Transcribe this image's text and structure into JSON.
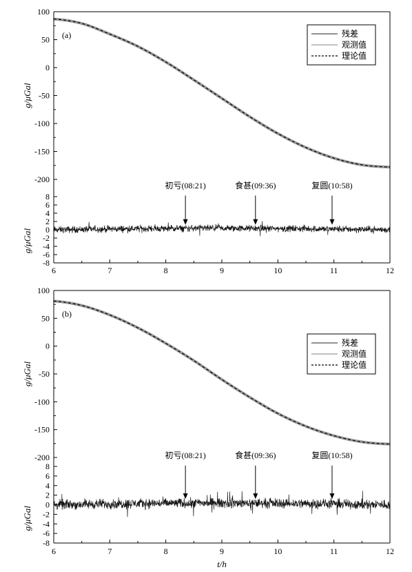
{
  "chart_data": [
    {
      "type": "line",
      "panel_label": "(a)",
      "xlabel": "t/h",
      "xlim": [
        6,
        12
      ],
      "x_ticks": [
        "6",
        "7",
        "8",
        "9",
        "10",
        "11",
        "12"
      ],
      "top": {
        "ylabel": "g/μGal",
        "ylim": [
          -200,
          100
        ],
        "y_ticks": [
          "100",
          "50",
          "0",
          "-50",
          "-100",
          "-150",
          "-200"
        ],
        "legend_position": "top-right",
        "series": [
          {
            "name": "残差",
            "style": "solid-dark",
            "color": "#222222"
          },
          {
            "name": "观测值",
            "style": "solid-gray",
            "color": "#9a9a9a",
            "x": [
              6,
              6.5,
              7,
              7.5,
              8,
              8.5,
              9,
              9.5,
              10,
              10.5,
              11,
              11.5,
              12
            ],
            "y": [
              87,
              79,
              60,
              38,
              10,
              -22,
              -55,
              -88,
              -118,
              -143,
              -162,
              -174,
              -178
            ]
          },
          {
            "name": "理论值",
            "style": "dashed",
            "color": "#000000",
            "x": [
              6,
              6.5,
              7,
              7.5,
              8,
              8.5,
              9,
              9.5,
              10,
              10.5,
              11,
              11.5,
              12
            ],
            "y": [
              87,
              79,
              60,
              38,
              10,
              -22,
              -55,
              -88,
              -118,
              -143,
              -162,
              -174,
              -178
            ]
          }
        ]
      },
      "bottom": {
        "ylabel": "g/μGal",
        "ylim": [
          -8,
          8
        ],
        "y_ticks": [
          "8",
          "6",
          "4",
          "2",
          "0",
          "-2",
          "-4",
          "-6",
          "-8"
        ],
        "residual_amplitude": 1.2,
        "annotations": [
          {
            "text": "初亏(08:21)",
            "x": 8.35
          },
          {
            "text": "食甚(09:36)",
            "x": 9.6
          },
          {
            "text": "复圆(10:58)",
            "x": 10.967
          }
        ]
      }
    },
    {
      "type": "line",
      "panel_label": "(b)",
      "xlabel": "t/h",
      "xlim": [
        6,
        12
      ],
      "x_ticks": [
        "6",
        "7",
        "8",
        "9",
        "10",
        "11",
        "12"
      ],
      "top": {
        "ylabel": "g/μGal",
        "ylim": [
          -200,
          100
        ],
        "y_ticks": [
          "100",
          "50",
          "0",
          "-50",
          "-100",
          "-150",
          "-200"
        ],
        "legend_position": "right",
        "series": [
          {
            "name": "残差",
            "style": "solid-dark",
            "color": "#222222"
          },
          {
            "name": "观测值",
            "style": "solid-gray",
            "color": "#9a9a9a",
            "x": [
              6,
              6.5,
              7,
              7.5,
              8,
              8.5,
              9,
              9.5,
              10,
              10.5,
              11,
              11.5,
              12
            ],
            "y": [
              81,
              73,
              56,
              33,
              5,
              -26,
              -60,
              -92,
              -121,
              -144,
              -161,
              -172,
              -176
            ]
          },
          {
            "name": "理论值",
            "style": "dashed",
            "color": "#000000",
            "x": [
              6,
              6.5,
              7,
              7.5,
              8,
              8.5,
              9,
              9.5,
              10,
              10.5,
              11,
              11.5,
              12
            ],
            "y": [
              81,
              73,
              56,
              33,
              5,
              -26,
              -60,
              -92,
              -121,
              -144,
              -161,
              -172,
              -176
            ]
          }
        ]
      },
      "bottom": {
        "ylabel": "g/μGal",
        "ylim": [
          -8,
          8
        ],
        "y_ticks": [
          "8",
          "6",
          "4",
          "2",
          "0",
          "-2",
          "-4",
          "-6",
          "-8"
        ],
        "residual_amplitude": 1.5,
        "annotations": [
          {
            "text": "初亏(08:21)",
            "x": 8.35
          },
          {
            "text": "食甚(09:36)",
            "x": 9.6
          },
          {
            "text": "复圆(10:58)",
            "x": 10.967
          }
        ]
      }
    }
  ]
}
